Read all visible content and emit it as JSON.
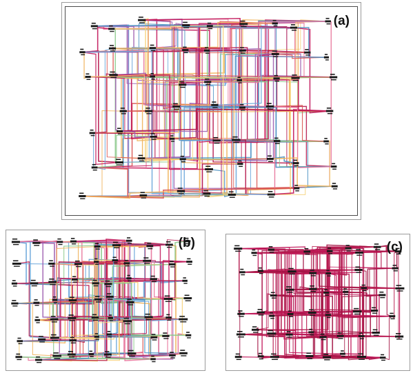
{
  "panels": [
    {
      "id": "a",
      "label": "(a)",
      "style": "multicolor"
    },
    {
      "id": "b",
      "label": "(b)",
      "style": "multicolor"
    },
    {
      "id": "c",
      "label": "(c)",
      "style": "mono"
    }
  ],
  "colors": {
    "multicolor": [
      "#b5174d",
      "#c2185b",
      "#f0b35a",
      "#f6d27a",
      "#6fa8dc",
      "#4a90c2",
      "#8bc98b",
      "#e8739a",
      "#9e5fb0",
      "#d9534f"
    ],
    "mono": [
      "#b5174d",
      "#a31545",
      "#c2185b"
    ],
    "node": "#1a1a1a"
  }
}
